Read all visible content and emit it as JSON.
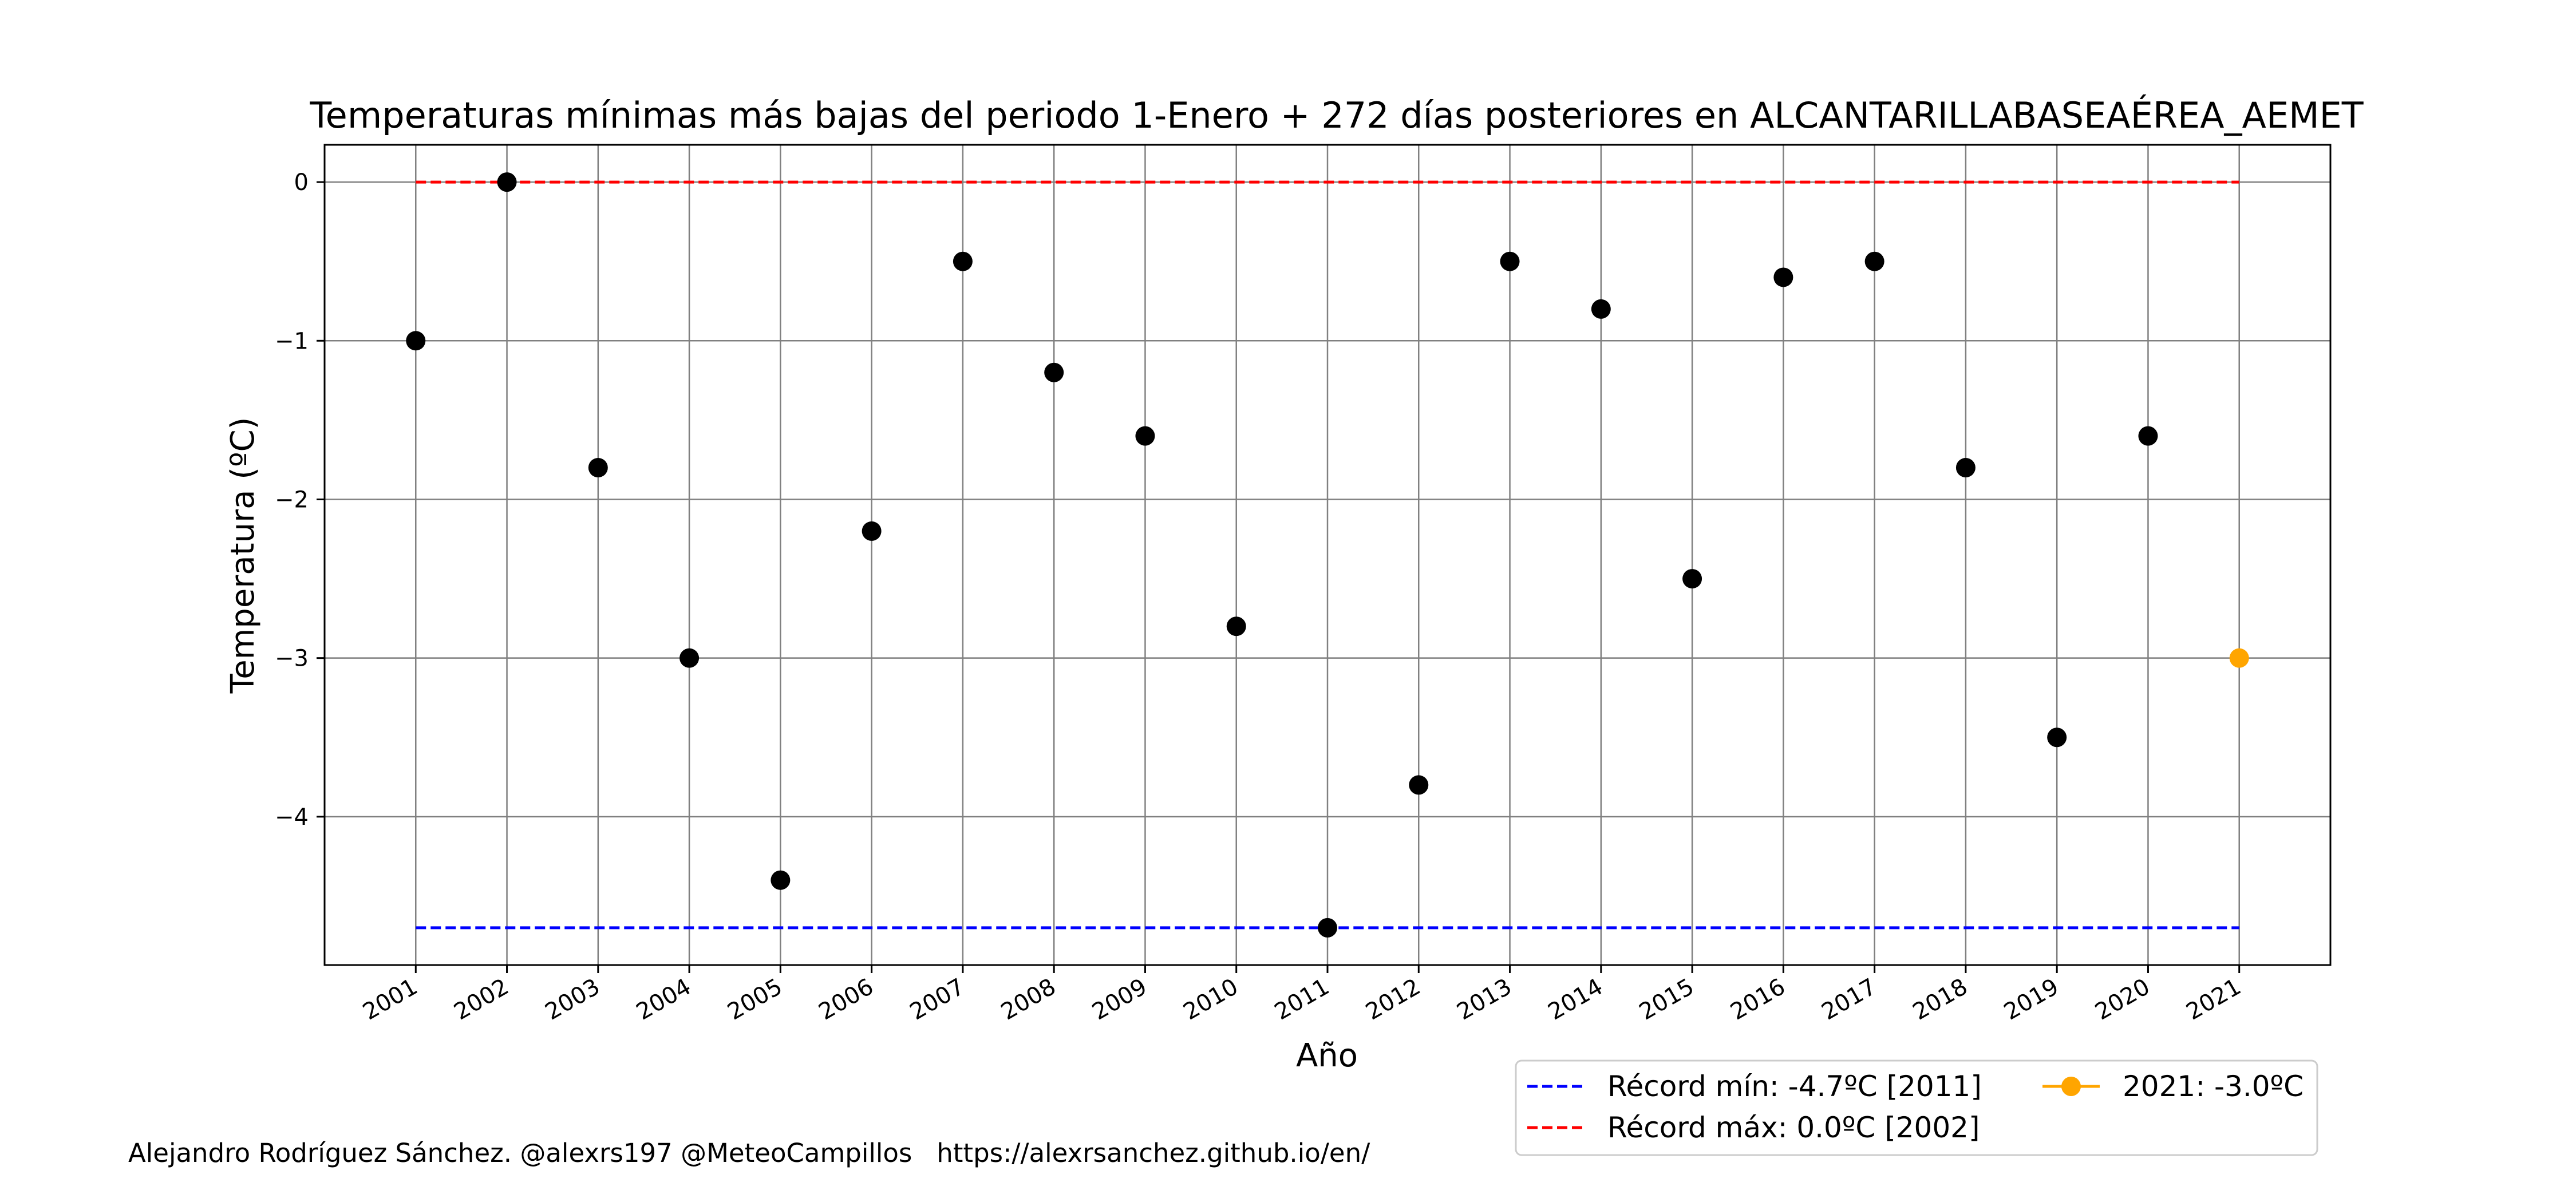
{
  "chart_data": {
    "type": "scatter",
    "title": "Temperaturas mínimas más bajas del periodo 1-Enero + 272 días posteriores en ALCANTARILLABASEAÉREA_AEMET",
    "xlabel": "Año",
    "ylabel": "Temperatura (ºC)",
    "x": [
      2001,
      2002,
      2003,
      2004,
      2005,
      2006,
      2007,
      2008,
      2009,
      2010,
      2011,
      2012,
      2013,
      2014,
      2015,
      2016,
      2017,
      2018,
      2019,
      2020
    ],
    "y": [
      -1.0,
      0.0,
      -1.8,
      -3.0,
      -4.4,
      -2.2,
      -0.5,
      -1.2,
      -1.6,
      -2.8,
      -4.7,
      -3.8,
      -0.5,
      -0.8,
      -2.5,
      -0.6,
      -0.5,
      -1.8,
      -3.5,
      -1.6
    ],
    "current": {
      "year": 2021,
      "value": -3.0,
      "label": "2021: -3.0ºC",
      "color": "#ffa500"
    },
    "record_min": {
      "value": -4.7,
      "label": "Récord mín: -4.7ºC [2011]",
      "color": "#0000ff",
      "style": "dashed"
    },
    "record_max": {
      "value": 0.0,
      "label": "Récord máx: 0.0ºC [2002]",
      "color": "#ff0000",
      "style": "dashed"
    },
    "xticks": [
      "2001",
      "2002",
      "2003",
      "2004",
      "2005",
      "2006",
      "2007",
      "2008",
      "2009",
      "2010",
      "2011",
      "2012",
      "2013",
      "2014",
      "2015",
      "2016",
      "2017",
      "2018",
      "2019",
      "2020",
      "2021"
    ],
    "yticks": [
      0,
      -1,
      -2,
      -3,
      -4
    ],
    "ytick_labels": [
      "0",
      "−1",
      "−2",
      "−3",
      "−4"
    ],
    "xlim": [
      2000.0,
      2022.0
    ],
    "ylim": [
      -4.935,
      0.235
    ],
    "grid": true,
    "legend_position": "below-right",
    "point_color": "#000000"
  },
  "footer": {
    "credit": "Alejandro Rodríguez Sánchez. @alexrs197 @MeteoCampillos   https://alexrsanchez.github.io/en/"
  }
}
